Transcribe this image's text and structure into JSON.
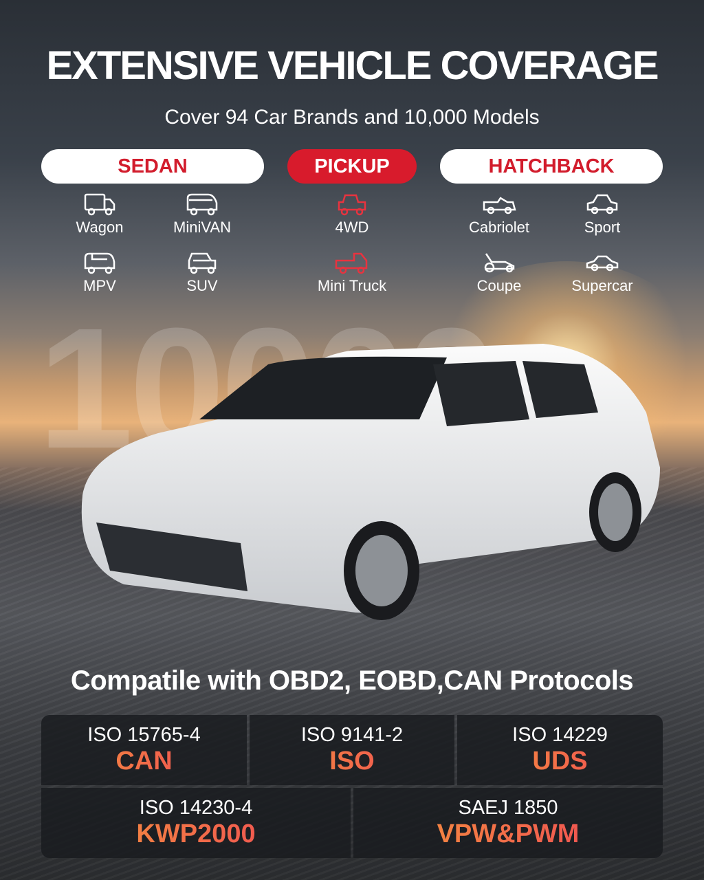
{
  "title": "EXTENSIVE VEHICLE COVERAGE",
  "subtitle": "Cover 94 Car Brands and 10,000 Models",
  "categories": [
    {
      "label": "SEDAN",
      "active": false,
      "items": [
        {
          "label": "Wagon",
          "icon": "truck-icon"
        },
        {
          "label": "MiniVAN",
          "icon": "minivan-icon"
        },
        {
          "label": "MPV",
          "icon": "mpv-icon"
        },
        {
          "label": "SUV",
          "icon": "suv-icon"
        }
      ]
    },
    {
      "label": "PICKUP",
      "active": true,
      "items": [
        {
          "label": "4WD",
          "icon": "jeep-icon"
        },
        {
          "label": "Mini Truck",
          "icon": "pickup-truck-icon"
        }
      ]
    },
    {
      "label": "HATCHBACK",
      "active": false,
      "items": [
        {
          "label": "Cabriolet",
          "icon": "convertible-icon"
        },
        {
          "label": "Sport",
          "icon": "sport-car-icon"
        },
        {
          "label": "Coupe",
          "icon": "race-car-icon"
        },
        {
          "label": "Supercar",
          "icon": "supercar-icon"
        }
      ]
    }
  ],
  "background_number": "10000",
  "protocols_title": "Compatile with OBD2, EOBD,CAN Protocols",
  "protocols": [
    {
      "standard": "ISO 15765-4",
      "name": "CAN"
    },
    {
      "standard": "ISO 9141-2",
      "name": "ISO"
    },
    {
      "standard": "ISO 14229",
      "name": "UDS"
    },
    {
      "standard": "ISO 14230-4",
      "name": "KWP2000"
    },
    {
      "standard": "SAEJ 1850",
      "name": "VPW&PWM"
    }
  ],
  "colors": {
    "accent_red": "#d81b2c",
    "gradient_orange": "#f59a3a",
    "gradient_pink": "#ef4058"
  }
}
